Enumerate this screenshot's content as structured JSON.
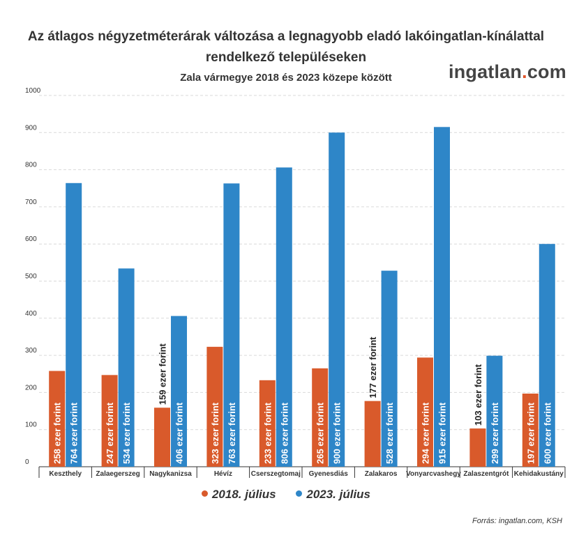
{
  "header": {
    "title_line1": "Az átlagos négyzetméterárak változása a legnagyobb eladó lakóingatlan-kínálattal",
    "title_line2": "rendelkező településeken",
    "subtitle": "Zala vármegye 2018 és 2023 közepe között"
  },
  "logo": {
    "name": "ingatlan",
    "dot": ".",
    "suffix": "com"
  },
  "footer": {
    "source": "Forrás: ingatlan.com, KSH"
  },
  "chart_data": {
    "type": "bar",
    "categories": [
      "Keszthely",
      "Zalaegerszeg",
      "Nagykanizsa",
      "Hévíz",
      "Cserszegtomaj",
      "Gyenesdiás",
      "Zalakaros",
      "Vonyarcvashegy",
      "Zalaszentgrót",
      "Kehidakustány"
    ],
    "series": [
      {
        "name": "2018. július",
        "color": "#d95a2b",
        "values": [
          258,
          247,
          159,
          323,
          233,
          265,
          177,
          294,
          103,
          197
        ],
        "labels": [
          "258 ezer forint",
          "247 ezer forint",
          "159 ezer forint",
          "323 ezer forint",
          "233 ezer forint",
          "265 ezer forint",
          "177 ezer forint",
          "294 ezer forint",
          "103 ezer forint",
          "197 ezer forint"
        ]
      },
      {
        "name": "2023. július",
        "color": "#2e86c8",
        "values": [
          764,
          534,
          406,
          763,
          806,
          900,
          528,
          915,
          299,
          600
        ],
        "labels": [
          "764 ezer forint",
          "534 ezer forint",
          "406 ezer forint",
          "763 ezer forint",
          "806 ezer forint",
          "900 ezer forint",
          "528 ezer forint",
          "915 ezer forint",
          "299 ezer forint",
          "600 ezer forint"
        ]
      }
    ],
    "yticks": [
      "0",
      "100",
      "200",
      "300",
      "400",
      "500",
      "600",
      "700",
      "800",
      "900",
      "1000"
    ],
    "ylim": [
      0,
      1000
    ],
    "grid": true,
    "legend": "bottom-center"
  }
}
